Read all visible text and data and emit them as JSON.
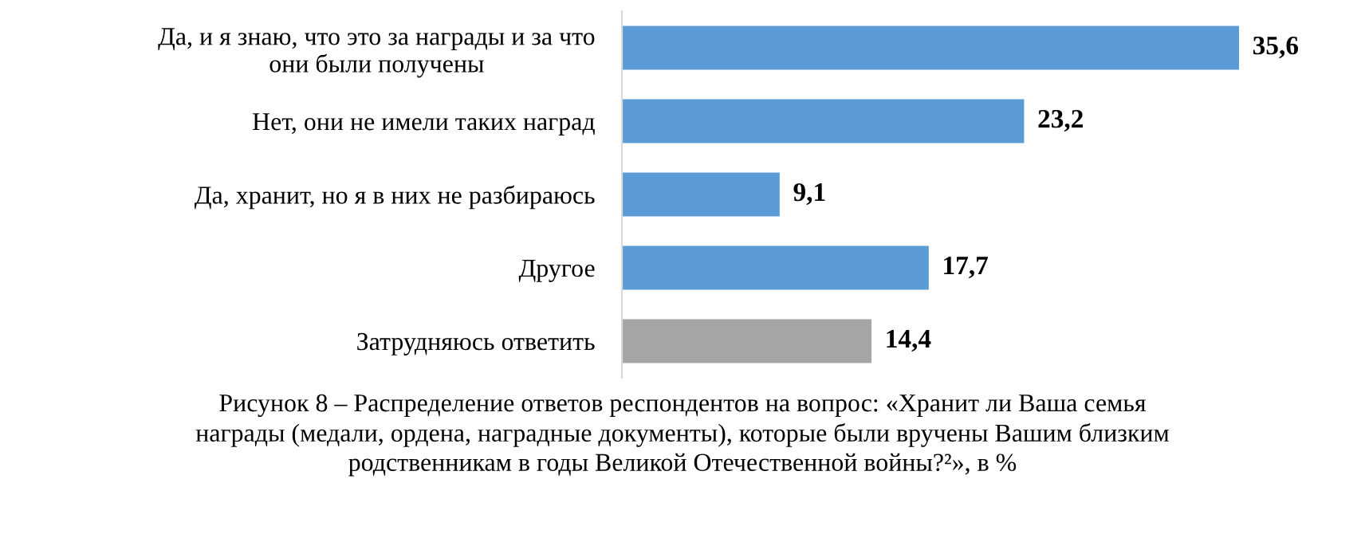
{
  "chart_data": {
    "type": "bar",
    "orientation": "horizontal",
    "categories": [
      "Да, и я знаю, что это за награды и за что\nони были получены",
      "Нет, они не имели таких наград",
      "Да, хранит, но я в них не разбираюсь",
      "Другое",
      "Затрудняюсь ответить"
    ],
    "values": [
      35.6,
      23.2,
      9.1,
      17.7,
      14.4
    ],
    "colors": [
      "#5b9bd5",
      "#5b9bd5",
      "#5b9bd5",
      "#5b9bd5",
      "#a5a5a5"
    ],
    "value_labels": [
      "35,6",
      "23,2",
      "9,1",
      "17,7",
      "14,4"
    ],
    "annotations": [
      "Рисунок 8 – Распределение ответов респондентов на вопрос: «Хранит ли Ваша семья\nнаграды (медали, ордена, наградные документы), которые были вручены Вашим близким\nродственникам в годы Великой Отечественной войны?²», в %"
    ],
    "grid": false,
    "legend": false
  }
}
